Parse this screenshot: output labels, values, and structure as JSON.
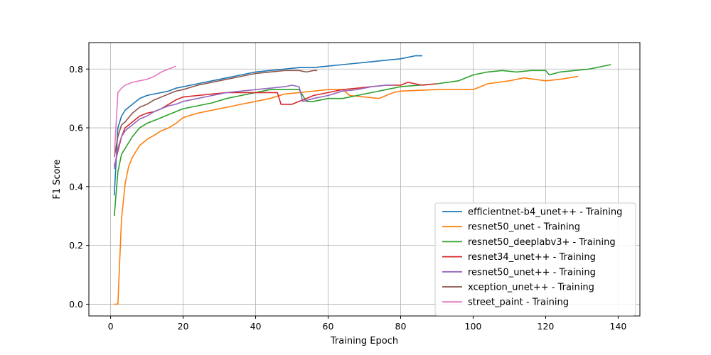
{
  "chart_data": {
    "type": "line",
    "xlabel": "Training Epoch",
    "ylabel": "F1 Score",
    "xlim": [
      -6,
      146
    ],
    "ylim": [
      -0.04,
      0.89
    ],
    "xticks": [
      0,
      20,
      40,
      60,
      80,
      100,
      120,
      140
    ],
    "yticks": [
      0.0,
      0.2,
      0.4,
      0.6,
      0.8
    ],
    "ytick_labels": [
      "0.0",
      "0.2",
      "0.4",
      "0.6",
      "0.8"
    ],
    "grid": true,
    "legend_position": "lower-right",
    "series": [
      {
        "name": "efficientnet-b4_unet++ - Training",
        "color": "#1f77b4",
        "x": [
          1,
          2,
          3,
          4,
          6,
          8,
          10,
          12,
          14,
          16,
          18,
          20,
          24,
          28,
          32,
          36,
          40,
          44,
          48,
          52,
          56,
          60,
          64,
          68,
          72,
          76,
          80,
          82,
          84,
          86
        ],
        "y": [
          0.37,
          0.6,
          0.64,
          0.66,
          0.68,
          0.7,
          0.71,
          0.715,
          0.72,
          0.725,
          0.735,
          0.74,
          0.75,
          0.76,
          0.77,
          0.78,
          0.79,
          0.795,
          0.8,
          0.805,
          0.805,
          0.81,
          0.815,
          0.82,
          0.825,
          0.83,
          0.835,
          0.84,
          0.845,
          0.845
        ]
      },
      {
        "name": "resnet50_unet - Training",
        "color": "#ff7f0e",
        "x": [
          1,
          2,
          3,
          4,
          5,
          6,
          8,
          10,
          12,
          14,
          16,
          18,
          20,
          24,
          28,
          32,
          36,
          40,
          44,
          48,
          52,
          56,
          60,
          64,
          66,
          70,
          74,
          78,
          80,
          90,
          100,
          104,
          110,
          114,
          120,
          124,
          129
        ],
        "y": [
          0.0,
          0.0,
          0.29,
          0.41,
          0.47,
          0.5,
          0.54,
          0.56,
          0.575,
          0.59,
          0.6,
          0.615,
          0.635,
          0.65,
          0.66,
          0.67,
          0.68,
          0.69,
          0.7,
          0.715,
          0.72,
          0.725,
          0.73,
          0.73,
          0.71,
          0.705,
          0.7,
          0.72,
          0.725,
          0.73,
          0.73,
          0.75,
          0.76,
          0.77,
          0.76,
          0.765,
          0.775
        ]
      },
      {
        "name": "resnet50_deeplabv3+ - Training",
        "color": "#2ca02c",
        "x": [
          1,
          2,
          3,
          4,
          6,
          8,
          10,
          12,
          14,
          16,
          18,
          20,
          24,
          28,
          32,
          36,
          40,
          44,
          48,
          52,
          54,
          56,
          60,
          64,
          68,
          72,
          76,
          80,
          90,
          96,
          100,
          104,
          108,
          112,
          116,
          120,
          121,
          124,
          128,
          132,
          136,
          138
        ],
        "y": [
          0.3,
          0.45,
          0.51,
          0.53,
          0.57,
          0.6,
          0.615,
          0.625,
          0.635,
          0.645,
          0.655,
          0.665,
          0.675,
          0.685,
          0.7,
          0.71,
          0.72,
          0.73,
          0.73,
          0.73,
          0.69,
          0.69,
          0.7,
          0.7,
          0.71,
          0.72,
          0.73,
          0.74,
          0.75,
          0.76,
          0.78,
          0.79,
          0.795,
          0.79,
          0.795,
          0.795,
          0.78,
          0.79,
          0.795,
          0.8,
          0.81,
          0.815
        ]
      },
      {
        "name": "resnet34_unet++ - Training",
        "color": "#d62728",
        "x": [
          1,
          2,
          3,
          4,
          6,
          8,
          10,
          12,
          14,
          16,
          18,
          20,
          24,
          28,
          32,
          36,
          40,
          44,
          46,
          47,
          50,
          52,
          54,
          56,
          60,
          64,
          68,
          72,
          76,
          80,
          82,
          84,
          86,
          90
        ],
        "y": [
          0.47,
          0.52,
          0.57,
          0.6,
          0.62,
          0.64,
          0.65,
          0.655,
          0.665,
          0.68,
          0.695,
          0.705,
          0.71,
          0.715,
          0.72,
          0.72,
          0.72,
          0.72,
          0.72,
          0.68,
          0.68,
          0.69,
          0.7,
          0.71,
          0.72,
          0.73,
          0.735,
          0.74,
          0.745,
          0.745,
          0.755,
          0.75,
          0.745,
          0.75
        ]
      },
      {
        "name": "resnet50_unet++ - Training",
        "color": "#9467bd",
        "x": [
          1,
          2,
          3,
          4,
          6,
          8,
          10,
          12,
          14,
          16,
          18,
          20,
          24,
          28,
          32,
          36,
          40,
          44,
          48,
          50,
          52,
          53,
          56,
          60,
          64,
          68,
          72,
          76,
          78
        ],
        "y": [
          0.46,
          0.53,
          0.57,
          0.59,
          0.61,
          0.63,
          0.64,
          0.655,
          0.665,
          0.675,
          0.68,
          0.69,
          0.7,
          0.71,
          0.72,
          0.725,
          0.73,
          0.735,
          0.74,
          0.745,
          0.74,
          0.69,
          0.7,
          0.71,
          0.725,
          0.73,
          0.74,
          0.745,
          0.745
        ]
      },
      {
        "name": "xception_unet++ - Training",
        "color": "#8c564b",
        "x": [
          1,
          2,
          3,
          4,
          6,
          8,
          10,
          12,
          14,
          16,
          18,
          20,
          24,
          28,
          32,
          36,
          40,
          44,
          48,
          52,
          54,
          56,
          57
        ],
        "y": [
          0.5,
          0.57,
          0.61,
          0.62,
          0.65,
          0.67,
          0.68,
          0.695,
          0.705,
          0.715,
          0.725,
          0.73,
          0.745,
          0.755,
          0.765,
          0.775,
          0.785,
          0.79,
          0.795,
          0.795,
          0.79,
          0.795,
          0.795
        ]
      },
      {
        "name": "street_paint - Training",
        "color": "#e377c2",
        "x": [
          1,
          2,
          3,
          4,
          5,
          6,
          8,
          10,
          12,
          14,
          16,
          17,
          18
        ],
        "y": [
          0.5,
          0.72,
          0.735,
          0.745,
          0.75,
          0.755,
          0.76,
          0.765,
          0.775,
          0.79,
          0.8,
          0.805,
          0.81
        ]
      }
    ]
  }
}
